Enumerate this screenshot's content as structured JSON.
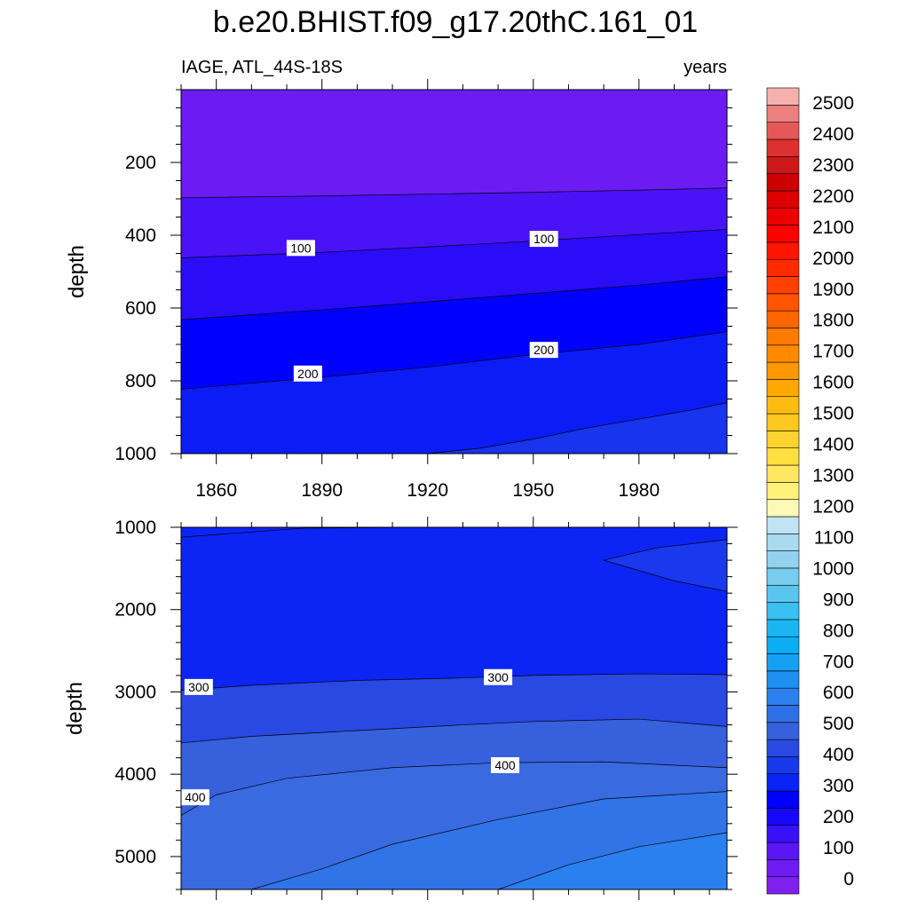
{
  "figure": {
    "title": "b.e20.BHIST.f09_g17.20thC.161_01",
    "left_string": "IAGE, ATL_44S-18S",
    "right_string": "years"
  },
  "chart_data": {
    "type": "heatmap",
    "xlim": [
      1850,
      2005
    ],
    "x_ticks": [
      1860,
      1890,
      1920,
      1950,
      1980
    ],
    "colorbar": {
      "levels": [
        0,
        100,
        200,
        300,
        400,
        500,
        600,
        700,
        800,
        900,
        1000,
        1100,
        1200,
        1300,
        1400,
        1500,
        1600,
        1700,
        1800,
        1900,
        2000,
        2100,
        2200,
        2300,
        2400,
        2500
      ],
      "colors": [
        "#8020ee",
        "#6f1cf2",
        "#5a16f5",
        "#3a10f8",
        "#1808fb",
        "#0000ff",
        "#0a24f6",
        "#1838ec",
        "#2a48e2",
        "#3660dc",
        "#2d70e6",
        "#2d80ee",
        "#1f90f2",
        "#16a0f4",
        "#0aaef5",
        "#1ab6f2",
        "#3ac0f2",
        "#5ac6f0",
        "#78ccee",
        "#92d2ee",
        "#a8daf0",
        "#c0e4f4",
        "#fff9b8",
        "#fff27a",
        "#ffe860",
        "#ffe040",
        "#ffd430",
        "#ffc820",
        "#ffbc10",
        "#ffa800",
        "#ff9800",
        "#ff8a00",
        "#ff7a00",
        "#ff6600",
        "#ff5400",
        "#ff4000",
        "#ff2a00",
        "#ff1400",
        "#ff0000",
        "#ee0000",
        "#dd0000",
        "#cc0000",
        "#cc1818",
        "#dd3030",
        "#e65858",
        "#ee8080",
        "#f6b0b0"
      ]
    },
    "panels": [
      {
        "name": "upper",
        "ylabel": "depth",
        "ylim": [
          0,
          1000
        ],
        "y_ticks": [
          200,
          400,
          600,
          800,
          1000
        ],
        "contour_labels": [
          {
            "text": "100",
            "x": 1884,
            "y": 435
          },
          {
            "text": "100",
            "x": 1953,
            "y": 410
          },
          {
            "text": "200",
            "x": 1886,
            "y": 780
          },
          {
            "text": "200",
            "x": 1953,
            "y": 715
          }
        ],
        "contours": [
          {
            "x": [
              1850,
              1890,
              1920,
              1950,
              1980,
              2005
            ],
            "y": [
              297,
              292,
              287,
              282,
              276,
              270
            ]
          },
          {
            "x": [
              1850,
              1890,
              1920,
              1950,
              1980,
              2005
            ],
            "y": [
              462,
              447,
              432,
              416,
              398,
              384
            ]
          },
          {
            "x": [
              1850,
              1890,
              1920,
              1950,
              1980,
              2005
            ],
            "y": [
              632,
              605,
              583,
              560,
              537,
              514
            ]
          },
          {
            "x": [
              1850,
              1890,
              1920,
              1950,
              1980,
              2005
            ],
            "y": [
              823,
              790,
              762,
              728,
              700,
              665
            ]
          },
          {
            "x": [
              1920,
              1935,
              1950,
              1965,
              1980,
              1995,
              2005
            ],
            "y": [
              1000,
              985,
              960,
              930,
              905,
              880,
              860
            ]
          }
        ],
        "fills": [
          "#6c1cf2",
          "#4a12f6",
          "#2a0cf9",
          "#0000ff",
          "#0c1cf6",
          "#1834ee"
        ]
      },
      {
        "name": "lower",
        "ylabel": "depth",
        "ylim": [
          1000,
          5400
        ],
        "y_ticks": [
          1000,
          2000,
          3000,
          4000,
          5000
        ],
        "contour_labels": [
          {
            "text": "300",
            "x": 1855,
            "y": 2940
          },
          {
            "text": "300",
            "x": 1940,
            "y": 2820
          },
          {
            "text": "400",
            "x": 1854,
            "y": 4280
          },
          {
            "text": "400",
            "x": 1942,
            "y": 3890
          }
        ],
        "contours": [
          {
            "x": [
              1850,
              1870,
              1900,
              1930,
              1950,
              1980,
              2005
            ],
            "y": [
              2980,
              2920,
              2860,
              2830,
              2800,
              2780,
              2790
            ]
          },
          {
            "x": [
              1850,
              1870,
              1900,
              1930,
              1950,
              1980,
              2005
            ],
            "y": [
              3620,
              3540,
              3470,
              3400,
              3360,
              3330,
              3420
            ]
          },
          {
            "x": [
              1850,
              1860,
              1880,
              1910,
              1940,
              1970,
              2005
            ],
            "y": [
              4500,
              4250,
              4050,
              3920,
              3860,
              3850,
              3920
            ]
          },
          {
            "x": [
              1870,
              1890,
              1910,
              1940,
              1970,
              2005
            ],
            "y": [
              5400,
              5150,
              4850,
              4550,
              4300,
              4210
            ]
          },
          {
            "x": [
              1940,
              1960,
              1980,
              2005
            ],
            "y": [
              5400,
              5100,
              4880,
              4710
            ]
          }
        ],
        "fills": [
          "#0c24f4",
          "#2a48e2",
          "#3660dc",
          "#3a6ae0",
          "#3074e8",
          "#2a80ee"
        ]
      }
    ]
  }
}
